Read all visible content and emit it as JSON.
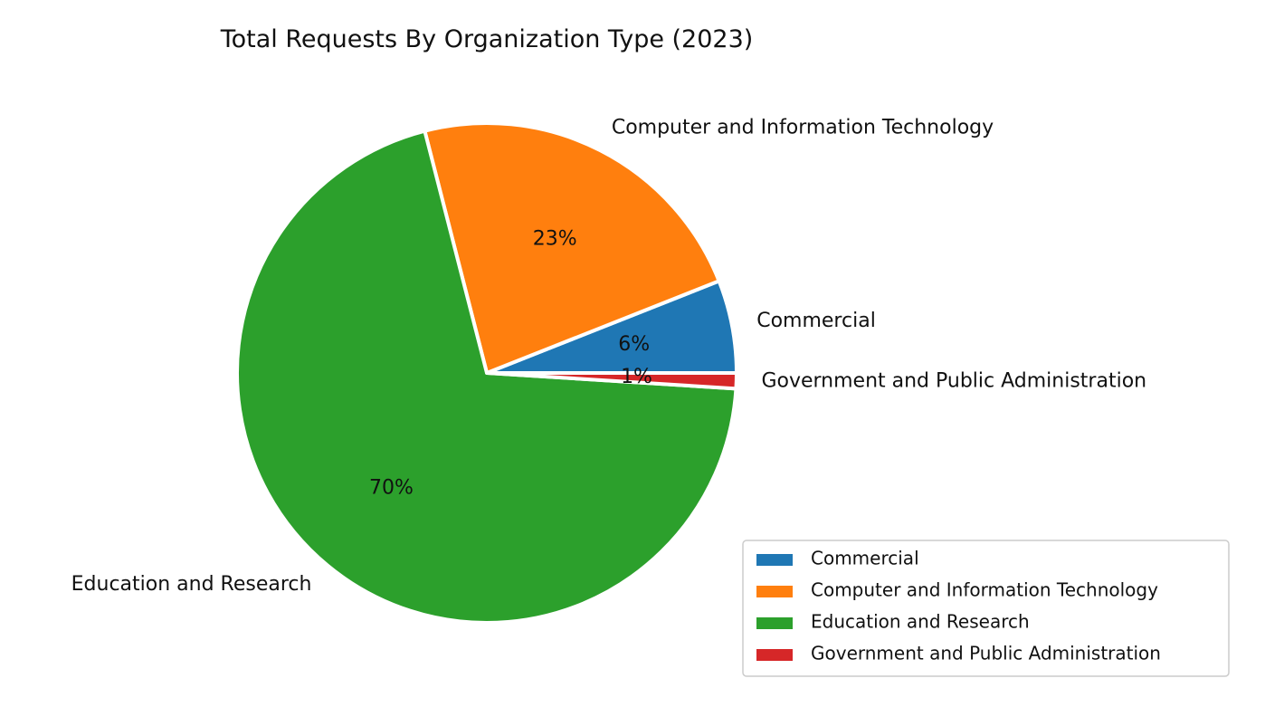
{
  "chart_data": {
    "type": "pie",
    "title": "Total Requests By Organization Type (2023)",
    "categories": [
      "Commercial",
      "Computer and Information Technology",
      "Education and Research",
      "Government and Public Administration"
    ],
    "values": [
      6,
      23,
      70,
      1
    ],
    "value_labels": [
      "6%",
      "23%",
      "70%",
      "1%"
    ],
    "colors": [
      "#1f77b4",
      "#ff7f0e",
      "#2ca02c",
      "#d62728"
    ],
    "legend": {
      "position": "lower-right",
      "entries": [
        "Commercial",
        "Computer and Information Technology",
        "Education and Research",
        "Government and Public Administration"
      ]
    }
  }
}
